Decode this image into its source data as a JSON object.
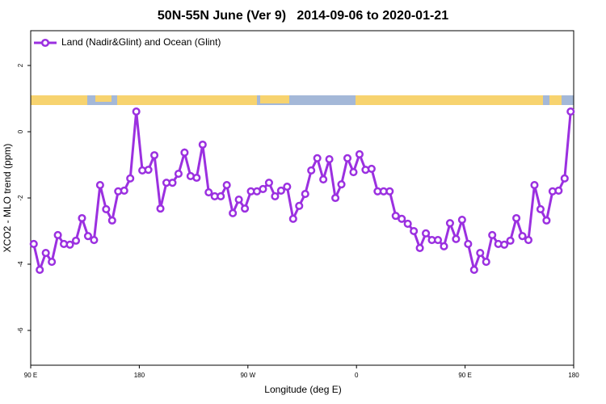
{
  "chart_data": {
    "type": "line",
    "title": "50N-55N June (Ver 9)   2014-09-06 to 2020-01-21",
    "x_label": "Longitude (deg E)",
    "y_label": "XCO2 - MLO trend (ppm)",
    "xlim": [
      90,
      540
    ],
    "xticks": [
      {
        "value": 90,
        "label": "90 E"
      },
      {
        "value": 180,
        "label": "180"
      },
      {
        "value": 270,
        "label": "90 W"
      },
      {
        "value": 360,
        "label": "0"
      },
      {
        "value": 450,
        "label": "90 E"
      },
      {
        "value": 540,
        "label": "180"
      }
    ],
    "ylim": [
      -7.05,
      3.05
    ],
    "yticks": [
      2,
      0,
      -2,
      -4,
      -6
    ],
    "legend": "top-left",
    "x": [
      92.5,
      97.5,
      102.5,
      107.5,
      112.5,
      117.5,
      122.5,
      127.5,
      132.5,
      137.5,
      142.5,
      147.5,
      152.5,
      157.5,
      162.5,
      167.5,
      172.5,
      177.5,
      182.5,
      187.5,
      192.5,
      197.5,
      202.5,
      207.5,
      212.5,
      217.5,
      222.5,
      227.5,
      232.5,
      237.5,
      242.5,
      247.5,
      252.5,
      257.5,
      262.5,
      267.5,
      272.5,
      277.5,
      282.5,
      287.5,
      292.5,
      297.5,
      302.5,
      307.5,
      312.5,
      317.5,
      322.5,
      327.5,
      332.5,
      337.5,
      342.5,
      347.5,
      352.5,
      357.5,
      362.5,
      367.5,
      372.5,
      377.5,
      382.5,
      387.5,
      392.5,
      397.5,
      402.5,
      407.5,
      412.5,
      417.5,
      422.5,
      427.5,
      432.5,
      437.5,
      442.5,
      447.5,
      452.5,
      457.5,
      462.5,
      467.5,
      472.5,
      477.5,
      482.5,
      487.5,
      492.5,
      497.5,
      502.5,
      507.5,
      512.5,
      517.5,
      522.5,
      527.5,
      532.5,
      537.5
    ],
    "series": [
      {
        "name": "Land (Nadir&Glint) and Ocean (Glint)",
        "color": "#9b30e0",
        "values": [
          -3.39,
          -4.17,
          -3.66,
          -3.93,
          -3.12,
          -3.39,
          -3.41,
          -3.29,
          -2.61,
          -3.15,
          -3.27,
          -1.61,
          -2.34,
          -2.68,
          -1.8,
          -1.78,
          -1.41,
          0.61,
          -1.17,
          -1.15,
          -0.71,
          -2.32,
          -1.54,
          -1.54,
          -1.27,
          -0.63,
          -1.34,
          -1.39,
          -0.39,
          -1.83,
          -1.95,
          -1.95,
          -1.61,
          -2.46,
          -2.05,
          -2.32,
          -1.8,
          -1.8,
          -1.73,
          -1.54,
          -1.95,
          -1.78,
          -1.66,
          -2.63,
          -2.24,
          -1.88,
          -1.17,
          -0.8,
          -1.44,
          -0.83,
          -2.0,
          -1.59,
          -0.8,
          -1.22,
          -0.68,
          -1.15,
          -1.12,
          -1.8,
          -1.8,
          -1.8,
          -2.54,
          -2.63,
          -2.78,
          -3.0,
          -3.51,
          -3.07,
          -3.27,
          -3.27,
          -3.46,
          -2.76,
          -3.24,
          -2.66,
          -3.39,
          -4.17,
          -3.66,
          -3.93,
          -3.12,
          -3.39,
          -3.41,
          -3.29,
          -2.61,
          -3.15,
          -3.27,
          -1.61,
          -2.34,
          -2.68,
          -1.8,
          -1.78,
          -1.41,
          0.61
        ]
      }
    ]
  }
}
